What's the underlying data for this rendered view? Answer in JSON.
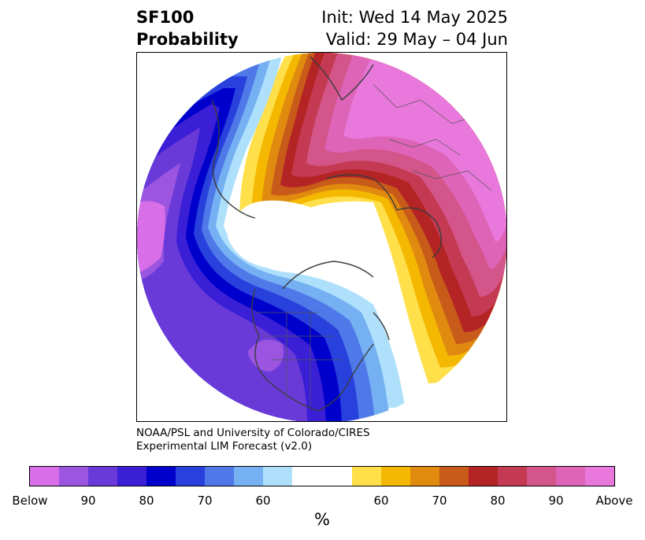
{
  "header": {
    "variable": "SF100",
    "product": "Probability",
    "init": "Init: Wed 14 May 2025",
    "valid": "Valid: 29 May – 04 Jun"
  },
  "credit": {
    "line1": "NOAA/PSL and University of Colorado/CIRES",
    "line2": "Experimental LIM Forecast (v2.0)"
  },
  "colorbar": {
    "unit": "%",
    "below_colors": [
      "#d86ee8",
      "#9b55e0",
      "#6a3ad8",
      "#3a1fd6",
      "#0000cc",
      "#2840dc",
      "#4f78e8",
      "#74b0f2",
      "#aee0fc"
    ],
    "neutral_color": "#ffffff",
    "above_colors": [
      "#ffe04a",
      "#f4b800",
      "#e08a10",
      "#c85a1a",
      "#b52424",
      "#c43a52",
      "#d4558a",
      "#de64b8",
      "#e878dc"
    ],
    "tick_labels": [
      "Below",
      "90",
      "80",
      "70",
      "60",
      "60",
      "70",
      "80",
      "90",
      "Above"
    ]
  },
  "map": {
    "projection": "north polar stereographic",
    "features": [
      "coastlines",
      "country borders",
      "US states"
    ]
  }
}
